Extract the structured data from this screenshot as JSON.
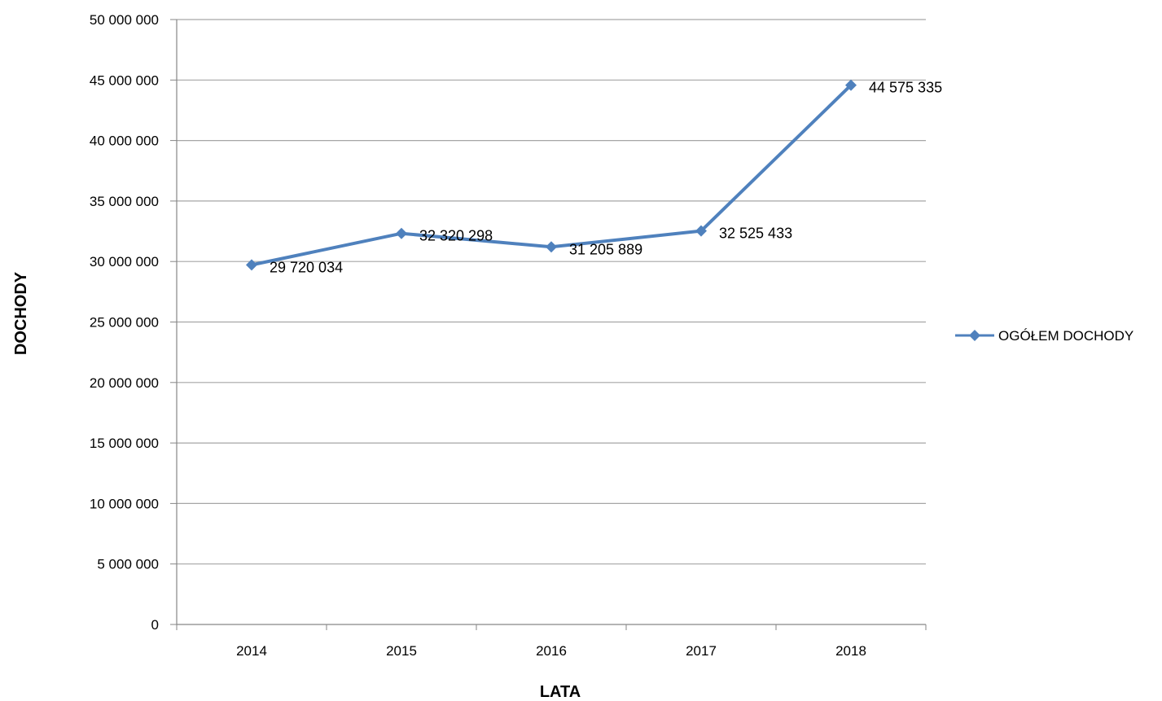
{
  "chart_data": {
    "type": "line",
    "categories": [
      "2014",
      "2015",
      "2016",
      "2017",
      "2018"
    ],
    "series": [
      {
        "name": "OGÓŁEM DOCHODY",
        "values": [
          29720034,
          32320298,
          31205889,
          32525433,
          44575335
        ],
        "data_labels": [
          "29 720 034",
          "32 320 298",
          "31 205 889",
          "32 525 433",
          "44 575 335"
        ],
        "color": "#4F81BD",
        "marker": "diamond"
      }
    ],
    "xlabel": "LATA",
    "ylabel": "DOCHODY",
    "ylim": [
      0,
      50000000
    ],
    "y_ticks": [
      0,
      5000000,
      10000000,
      15000000,
      20000000,
      25000000,
      30000000,
      35000000,
      40000000,
      45000000,
      50000000
    ],
    "y_tick_labels": [
      "0",
      "5 000 000",
      "10 000 000",
      "15 000 000",
      "20 000 000",
      "25 000 000",
      "30 000 000",
      "35 000 000",
      "40 000 000",
      "45 000 000",
      "50 000 000"
    ],
    "grid": true,
    "legend_position": "right",
    "colors": {
      "gridline": "#A6A6A6",
      "axis": "#868686"
    }
  }
}
